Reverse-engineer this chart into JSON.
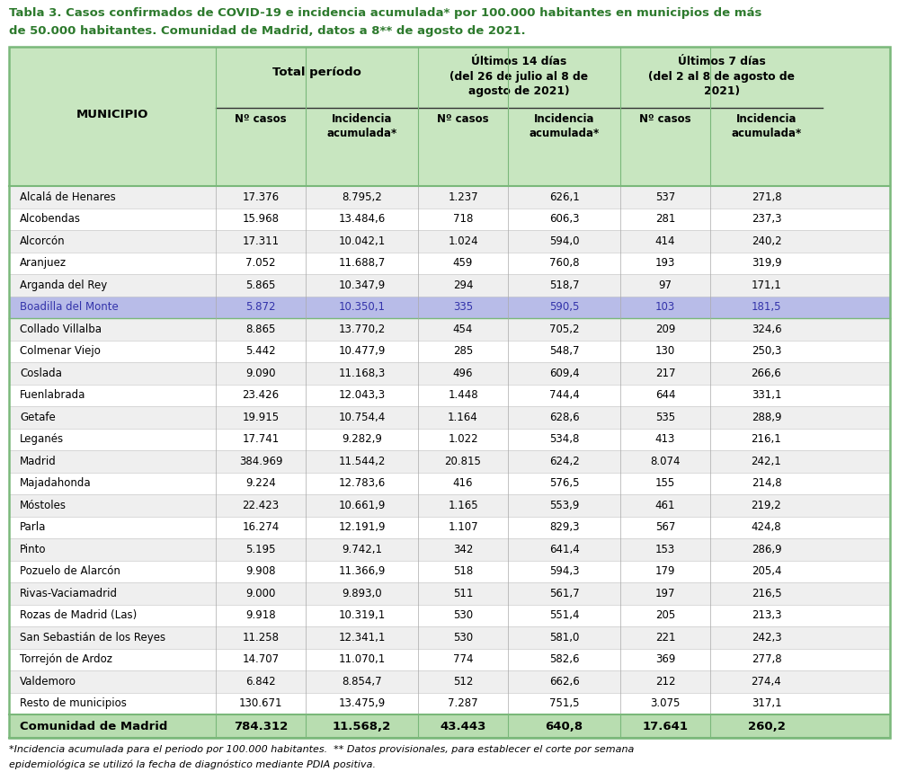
{
  "title_line1": "Tabla 3. Casos confirmados de COVID-19 e incidencia acumulada* por 100.000 habitantes en municipios de más",
  "title_line2": "de 50.000 habitantes. Comunidad de Madrid, datos a 8** de agosto de 2021.",
  "rows": [
    [
      "Alcalá de Henares",
      "17.376",
      "8.795,2",
      "1.237",
      "626,1",
      "537",
      "271,8"
    ],
    [
      "Alcobendas",
      "15.968",
      "13.484,6",
      "718",
      "606,3",
      "281",
      "237,3"
    ],
    [
      "Alcorcón",
      "17.311",
      "10.042,1",
      "1.024",
      "594,0",
      "414",
      "240,2"
    ],
    [
      "Aranjuez",
      "7.052",
      "11.688,7",
      "459",
      "760,8",
      "193",
      "319,9"
    ],
    [
      "Arganda del Rey",
      "5.865",
      "10.347,9",
      "294",
      "518,7",
      "97",
      "171,1"
    ],
    [
      "Boadilla del Monte",
      "5.872",
      "10.350,1",
      "335",
      "590,5",
      "103",
      "181,5"
    ],
    [
      "Collado Villalba",
      "8.865",
      "13.770,2",
      "454",
      "705,2",
      "209",
      "324,6"
    ],
    [
      "Colmenar Viejo",
      "5.442",
      "10.477,9",
      "285",
      "548,7",
      "130",
      "250,3"
    ],
    [
      "Coslada",
      "9.090",
      "11.168,3",
      "496",
      "609,4",
      "217",
      "266,6"
    ],
    [
      "Fuenlabrada",
      "23.426",
      "12.043,3",
      "1.448",
      "744,4",
      "644",
      "331,1"
    ],
    [
      "Getafe",
      "19.915",
      "10.754,4",
      "1.164",
      "628,6",
      "535",
      "288,9"
    ],
    [
      "Leganés",
      "17.741",
      "9.282,9",
      "1.022",
      "534,8",
      "413",
      "216,1"
    ],
    [
      "Madrid",
      "384.969",
      "11.544,2",
      "20.815",
      "624,2",
      "8.074",
      "242,1"
    ],
    [
      "Majadahonda",
      "9.224",
      "12.783,6",
      "416",
      "576,5",
      "155",
      "214,8"
    ],
    [
      "Móstoles",
      "22.423",
      "10.661,9",
      "1.165",
      "553,9",
      "461",
      "219,2"
    ],
    [
      "Parla",
      "16.274",
      "12.191,9",
      "1.107",
      "829,3",
      "567",
      "424,8"
    ],
    [
      "Pinto",
      "5.195",
      "9.742,1",
      "342",
      "641,4",
      "153",
      "286,9"
    ],
    [
      "Pozuelo de Alarcón",
      "9.908",
      "11.366,9",
      "518",
      "594,3",
      "179",
      "205,4"
    ],
    [
      "Rivas-Vaciamadrid",
      "9.000",
      "9.893,0",
      "511",
      "561,7",
      "197",
      "216,5"
    ],
    [
      "Rozas de Madrid (Las)",
      "9.918",
      "10.319,1",
      "530",
      "551,4",
      "205",
      "213,3"
    ],
    [
      "San Sebastián de los Reyes",
      "11.258",
      "12.341,1",
      "530",
      "581,0",
      "221",
      "242,3"
    ],
    [
      "Torrejón de Ardoz",
      "14.707",
      "11.070,1",
      "774",
      "582,6",
      "369",
      "277,8"
    ],
    [
      "Valdemoro",
      "6.842",
      "8.854,7",
      "512",
      "662,6",
      "212",
      "274,4"
    ],
    [
      "Resto de municipios",
      "130.671",
      "13.475,9",
      "7.287",
      "751,5",
      "3.075",
      "317,1"
    ]
  ],
  "footer_row": [
    "Comunidad de Madrid",
    "784.312",
    "11.568,2",
    "43.443",
    "640,8",
    "17.641",
    "260,2"
  ],
  "footnote_line1": "*Incidencia acumulada para el periodo por 100.000 habitantes.  ** Datos provisionales, para establecer el corte por semana",
  "footnote_line2": "epidemiológica se utilizó la fecha de diagnóstico mediante PDIA positiva.",
  "highlighted_row": 5,
  "color_header_bg": "#c8e6c0",
  "color_row_odd": "#efefef",
  "color_row_even": "#ffffff",
  "color_highlight_bg": "#b8bce8",
  "color_highlight_text": "#3333aa",
  "color_footer_bg": "#b8ddb0",
  "color_outer_border": "#7ab87a",
  "color_inner_border": "#7ab87a",
  "color_title": "#2d7a2d",
  "color_subheader_line": "#555555"
}
